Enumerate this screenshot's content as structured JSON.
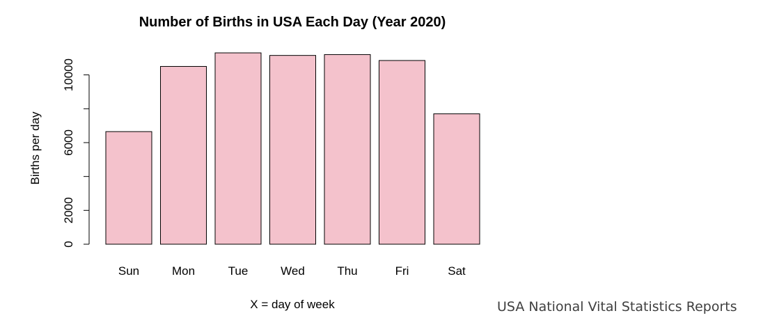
{
  "chart_data": {
    "type": "bar",
    "title": "Number of Births in USA Each Day (Year 2020)",
    "xlabel": "X = day of week",
    "ylabel": "Births per day",
    "categories": [
      "Sun",
      "Mon",
      "Tue",
      "Wed",
      "Thu",
      "Fri",
      "Sat"
    ],
    "values": [
      6650,
      10500,
      11300,
      11150,
      11200,
      10850,
      7700
    ],
    "ylim": [
      0,
      11300
    ],
    "yticks": [
      0,
      2000,
      6000,
      10000
    ],
    "ytick_labels": [
      "0",
      "2000",
      "6000",
      "10000"
    ],
    "bar_color": "#f4c2cc",
    "grid": false,
    "legend": "none"
  },
  "source_note": "USA National Vital Statistics Reports"
}
